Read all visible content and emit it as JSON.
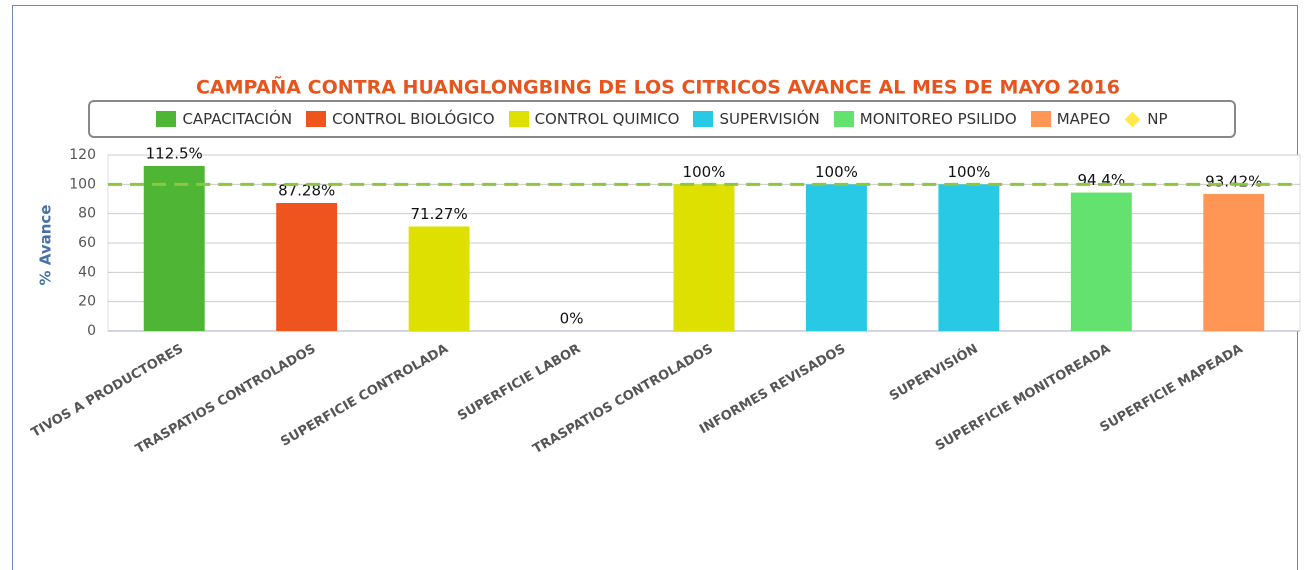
{
  "chart_data": {
    "type": "bar",
    "title": "CAMPAÑA CONTRA HUANGLONGBING DE LOS CITRICOS AVANCE AL MES DE MAYO 2016",
    "y_label": "% Avance",
    "categories": [
      "TIVOS A PRODUCTORES",
      "TRASPATIOS CONTROLADOS",
      "SUPERFICIE CONTROLADA",
      "SUPERFICIE LABOR",
      "TRASPATIOS CONTROLADOS",
      "INFORMES REVISADOS",
      "SUPERVISIÓN",
      "SUPERFICIE MONITOREADA",
      "SUPERFICIE MAPEADA"
    ],
    "ylim": [
      0,
      120
    ],
    "yticks": [
      0,
      20,
      40,
      60,
      80,
      100,
      120
    ],
    "grid": true,
    "series": [
      {
        "name": "CAPACITACIÓN",
        "color": "#4fb534",
        "values": [
          112.5,
          null,
          null,
          null,
          null,
          null,
          null,
          null,
          null
        ],
        "value_labels": [
          "112.5%",
          null,
          null,
          null,
          null,
          null,
          null,
          null,
          null
        ]
      },
      {
        "name": "CONTROL BIOLÓGICO",
        "color": "#f0541e",
        "values": [
          null,
          87.28,
          null,
          null,
          null,
          null,
          null,
          null,
          null
        ],
        "value_labels": [
          null,
          "87.28%",
          null,
          null,
          null,
          null,
          null,
          null,
          null
        ]
      },
      {
        "name": "CONTROL QUIMICO",
        "color": "#dde000",
        "values": [
          null,
          null,
          71.27,
          0,
          100,
          null,
          null,
          null,
          null
        ],
        "value_labels": [
          null,
          null,
          "71.27%",
          "0%",
          "100%",
          null,
          null,
          null,
          null
        ]
      },
      {
        "name": "SUPERVISIÓN",
        "color": "#27c9e4",
        "values": [
          null,
          null,
          null,
          null,
          null,
          100,
          100,
          null,
          null
        ],
        "value_labels": [
          null,
          null,
          null,
          null,
          null,
          "100%",
          "100%",
          null,
          null
        ]
      },
      {
        "name": "MONITOREO PSILIDO",
        "color": "#63e26f",
        "values": [
          null,
          null,
          null,
          null,
          null,
          null,
          null,
          94.4,
          null
        ],
        "value_labels": [
          null,
          null,
          null,
          null,
          null,
          null,
          null,
          "94.4%",
          null
        ]
      },
      {
        "name": "MAPEO",
        "color": "#ff9655",
        "values": [
          null,
          null,
          null,
          null,
          null,
          null,
          null,
          null,
          93.42
        ],
        "value_labels": [
          null,
          null,
          null,
          null,
          null,
          null,
          null,
          null,
          "93.42%"
        ]
      },
      {
        "name": "NP",
        "type": "line",
        "color": "#ffe74c",
        "line_color": "#8dc63f",
        "values": [
          100,
          100,
          100,
          100,
          100,
          100,
          100,
          100,
          100
        ]
      }
    ]
  }
}
